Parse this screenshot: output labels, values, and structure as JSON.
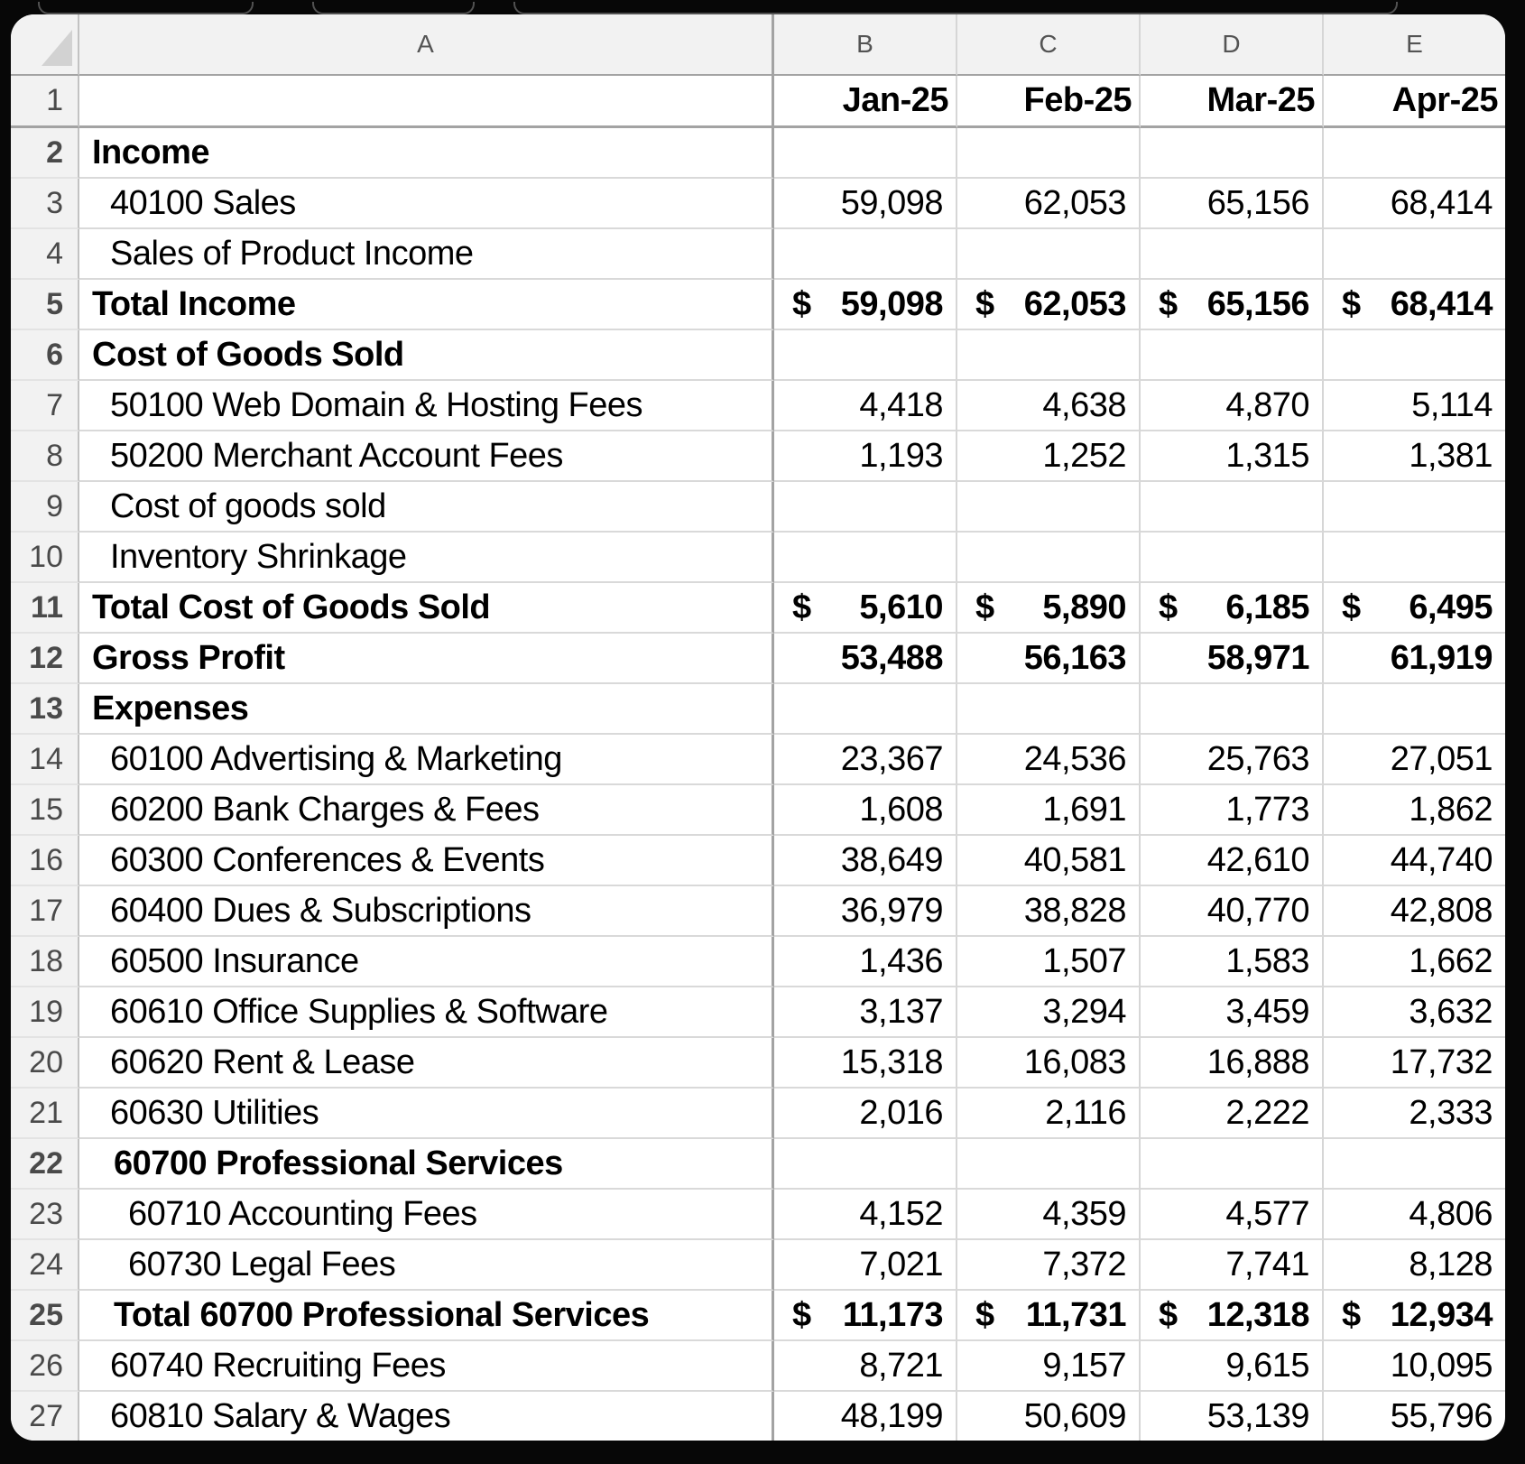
{
  "currency_symbol": "$",
  "columns": [
    "A",
    "B",
    "C",
    "D",
    "E"
  ],
  "frozen_row": {
    "num": "1",
    "cells": [
      "Jan-25",
      "Feb-25",
      "Mar-25",
      "Apr-25"
    ]
  },
  "rows": [
    {
      "num": "2",
      "label": "Income",
      "indent": 0,
      "bold": true,
      "money": false,
      "values": [
        "",
        "",
        "",
        ""
      ]
    },
    {
      "num": "3",
      "label": "40100 Sales",
      "indent": 1,
      "bold": false,
      "money": false,
      "values": [
        "59,098",
        "62,053",
        "65,156",
        "68,414"
      ]
    },
    {
      "num": "4",
      "label": "Sales of Product Income",
      "indent": 1,
      "bold": false,
      "money": false,
      "values": [
        "",
        "",
        "",
        ""
      ]
    },
    {
      "num": "5",
      "label": "Total Income",
      "indent": 0,
      "bold": true,
      "money": true,
      "values": [
        "59,098",
        "62,053",
        "65,156",
        "68,414"
      ]
    },
    {
      "num": "6",
      "label": "Cost of Goods Sold",
      "indent": 0,
      "bold": true,
      "money": false,
      "values": [
        "",
        "",
        "",
        ""
      ]
    },
    {
      "num": "7",
      "label": "50100 Web Domain & Hosting Fees",
      "indent": 1,
      "bold": false,
      "money": false,
      "values": [
        "4,418",
        "4,638",
        "4,870",
        "5,114"
      ]
    },
    {
      "num": "8",
      "label": "50200 Merchant Account Fees",
      "indent": 1,
      "bold": false,
      "money": false,
      "values": [
        "1,193",
        "1,252",
        "1,315",
        "1,381"
      ]
    },
    {
      "num": "9",
      "label": "Cost of goods sold",
      "indent": 1,
      "bold": false,
      "money": false,
      "values": [
        "",
        "",
        "",
        ""
      ]
    },
    {
      "num": "10",
      "label": "Inventory Shrinkage",
      "indent": 1,
      "bold": false,
      "money": false,
      "values": [
        "",
        "",
        "",
        ""
      ]
    },
    {
      "num": "11",
      "label": "Total Cost of Goods Sold",
      "indent": 0,
      "bold": true,
      "money": true,
      "values": [
        "5,610",
        "5,890",
        "6,185",
        "6,495"
      ]
    },
    {
      "num": "12",
      "label": "Gross Profit",
      "indent": 0,
      "bold": true,
      "money": false,
      "values": [
        "53,488",
        "56,163",
        "58,971",
        "61,919"
      ]
    },
    {
      "num": "13",
      "label": "Expenses",
      "indent": 0,
      "bold": true,
      "money": false,
      "values": [
        "",
        "",
        "",
        ""
      ]
    },
    {
      "num": "14",
      "label": "60100 Advertising & Marketing",
      "indent": 1,
      "bold": false,
      "money": false,
      "values": [
        "23,367",
        "24,536",
        "25,763",
        "27,051"
      ]
    },
    {
      "num": "15",
      "label": "60200 Bank Charges & Fees",
      "indent": 1,
      "bold": false,
      "money": false,
      "values": [
        "1,608",
        "1,691",
        "1,773",
        "1,862"
      ]
    },
    {
      "num": "16",
      "label": "60300 Conferences & Events",
      "indent": 1,
      "bold": false,
      "money": false,
      "values": [
        "38,649",
        "40,581",
        "42,610",
        "44,740"
      ]
    },
    {
      "num": "17",
      "label": "60400 Dues & Subscriptions",
      "indent": 1,
      "bold": false,
      "money": false,
      "values": [
        "36,979",
        "38,828",
        "40,770",
        "42,808"
      ]
    },
    {
      "num": "18",
      "label": "60500 Insurance",
      "indent": 1,
      "bold": false,
      "money": false,
      "values": [
        "1,436",
        "1,507",
        "1,583",
        "1,662"
      ]
    },
    {
      "num": "19",
      "label": "60610 Office Supplies & Software",
      "indent": 1,
      "bold": false,
      "money": false,
      "values": [
        "3,137",
        "3,294",
        "3,459",
        "3,632"
      ]
    },
    {
      "num": "20",
      "label": "60620 Rent & Lease",
      "indent": 1,
      "bold": false,
      "money": false,
      "values": [
        "15,318",
        "16,083",
        "16,888",
        "17,732"
      ]
    },
    {
      "num": "21",
      "label": "60630 Utilities",
      "indent": 1,
      "bold": false,
      "money": false,
      "values": [
        "2,016",
        "2,116",
        "2,222",
        "2,333"
      ]
    },
    {
      "num": "22",
      "label": "60700 Professional Services",
      "indent": 2,
      "bold": true,
      "money": false,
      "values": [
        "",
        "",
        "",
        ""
      ]
    },
    {
      "num": "23",
      "label": "60710 Accounting Fees",
      "indent": 3,
      "bold": false,
      "money": false,
      "values": [
        "4,152",
        "4,359",
        "4,577",
        "4,806"
      ]
    },
    {
      "num": "24",
      "label": "60730 Legal Fees",
      "indent": 3,
      "bold": false,
      "money": false,
      "values": [
        "7,021",
        "7,372",
        "7,741",
        "8,128"
      ]
    },
    {
      "num": "25",
      "label": "Total 60700 Professional Services",
      "indent": 2,
      "bold": true,
      "money": true,
      "values": [
        "11,173",
        "11,731",
        "12,318",
        "12,934"
      ]
    },
    {
      "num": "26",
      "label": "60740 Recruiting Fees",
      "indent": 1,
      "bold": false,
      "money": false,
      "values": [
        "8,721",
        "9,157",
        "9,615",
        "10,095"
      ]
    },
    {
      "num": "27",
      "label": "60810 Salary & Wages",
      "indent": 1,
      "bold": false,
      "money": false,
      "values": [
        "48,199",
        "50,609",
        "53,139",
        "55,796"
      ]
    }
  ]
}
